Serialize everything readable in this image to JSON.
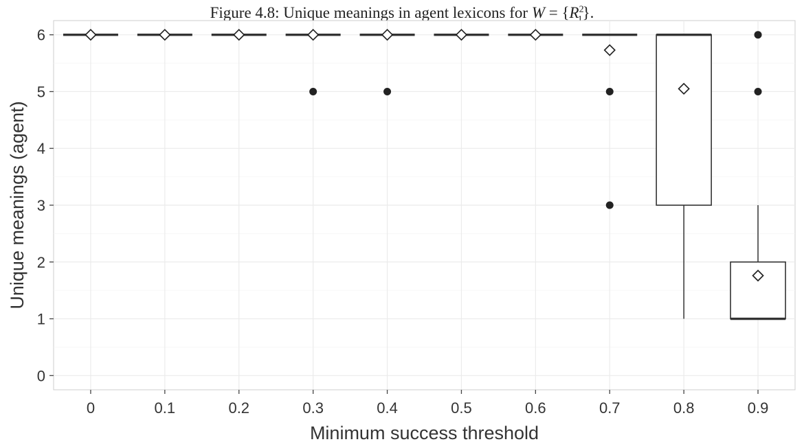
{
  "caption": {
    "prefix": "Figure 4.8: Unique meanings in agent lexicons for ",
    "math_var": "W",
    "math_equals": " = {",
    "math_symbol": "R",
    "math_sup": "2",
    "math_sub": "1",
    "math_close": "}."
  },
  "chart_data": {
    "type": "box",
    "xlabel": "Minimum success threshold",
    "ylabel": "Unique meanings (agent)",
    "ylim": [
      -0.25,
      6.25
    ],
    "yticks": [
      0,
      1,
      2,
      3,
      4,
      5,
      6
    ],
    "categories": [
      "0",
      "0.1",
      "0.2",
      "0.3",
      "0.4",
      "0.5",
      "0.6",
      "0.7",
      "0.8",
      "0.9"
    ],
    "boxes": [
      {
        "category": "0",
        "q1": 6,
        "median": 6,
        "q3": 6,
        "whisker_low": 6,
        "whisker_high": 6,
        "mean": 6.0,
        "outliers": []
      },
      {
        "category": "0.1",
        "q1": 6,
        "median": 6,
        "q3": 6,
        "whisker_low": 6,
        "whisker_high": 6,
        "mean": 6.0,
        "outliers": []
      },
      {
        "category": "0.2",
        "q1": 6,
        "median": 6,
        "q3": 6,
        "whisker_low": 6,
        "whisker_high": 6,
        "mean": 6.0,
        "outliers": []
      },
      {
        "category": "0.3",
        "q1": 6,
        "median": 6,
        "q3": 6,
        "whisker_low": 6,
        "whisker_high": 6,
        "mean": 6.0,
        "outliers": [
          5
        ]
      },
      {
        "category": "0.4",
        "q1": 6,
        "median": 6,
        "q3": 6,
        "whisker_low": 6,
        "whisker_high": 6,
        "mean": 6.0,
        "outliers": [
          5
        ]
      },
      {
        "category": "0.5",
        "q1": 6,
        "median": 6,
        "q3": 6,
        "whisker_low": 6,
        "whisker_high": 6,
        "mean": 6.0,
        "outliers": []
      },
      {
        "category": "0.6",
        "q1": 6,
        "median": 6,
        "q3": 6,
        "whisker_low": 6,
        "whisker_high": 6,
        "mean": 6.0,
        "outliers": []
      },
      {
        "category": "0.7",
        "q1": 6,
        "median": 6,
        "q3": 6,
        "whisker_low": 6,
        "whisker_high": 6,
        "mean": 5.73,
        "outliers": [
          5,
          3
        ]
      },
      {
        "category": "0.8",
        "q1": 3,
        "median": 6,
        "q3": 6,
        "whisker_low": 1,
        "whisker_high": 6,
        "mean": 5.05,
        "outliers": []
      },
      {
        "category": "0.9",
        "q1": 1,
        "median": 1,
        "q3": 2,
        "whisker_low": 1,
        "whisker_high": 3,
        "mean": 1.76,
        "outliers": [
          6,
          5
        ]
      }
    ],
    "grid": true,
    "legend": "none"
  }
}
